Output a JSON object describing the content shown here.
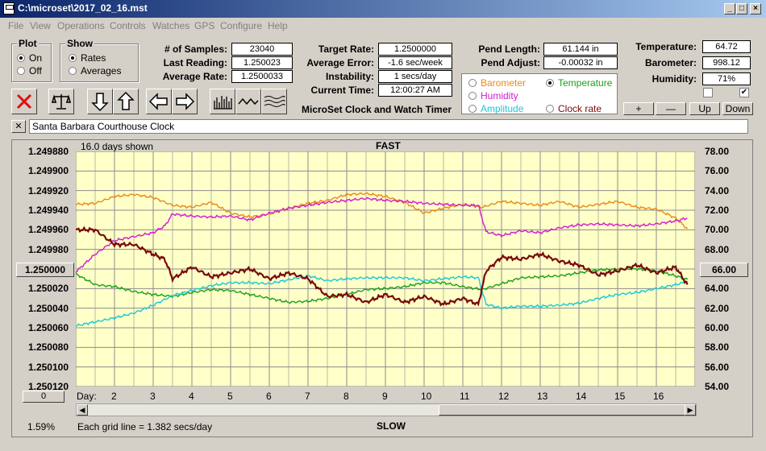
{
  "window": {
    "title": "C:\\microset\\2017_02_16.mst"
  },
  "menu": [
    "File",
    "View",
    "Operations",
    "Controls",
    "Watches",
    "GPS",
    "Configure",
    "Help"
  ],
  "plot_group": {
    "title": "Plot",
    "on": "On",
    "off": "Off",
    "selected": "On"
  },
  "show_group": {
    "title": "Show",
    "rates": "Rates",
    "averages": "Averages",
    "selected": "Rates"
  },
  "stats": {
    "samples_label": "# of Samples:",
    "samples": "23040",
    "last_label": "Last Reading:",
    "last": "1.250023",
    "avg_label": "Average Rate:",
    "avg": "1.2500033",
    "target_label": "Target Rate:",
    "target": "1.2500000",
    "error_label": "Average Error:",
    "error": "-1.6 sec/week",
    "instab_label": "Instability:",
    "instab": "1 secs/day",
    "time_label": "Current Time:",
    "time": "12:00:27 AM",
    "pend_len_label": "Pend Length:",
    "pend_len": "61.144 in",
    "pend_adj_label": "Pend Adjust:",
    "pend_adj": "-0.00032 in",
    "temp_label": "Temperature:",
    "temp": "64.72",
    "baro_label": "Barometer:",
    "baro": "998.12",
    "hum_label": "Humidity:",
    "hum": "71%"
  },
  "app_caption": "MicroSet Clock and Watch Timer",
  "sensor_options": [
    {
      "label": "Barometer",
      "color": "#e88a1a",
      "selected": false
    },
    {
      "label": "Temperature",
      "color": "#1aa01a",
      "selected": true
    },
    {
      "label": "Humidity",
      "color": "#d21ad2",
      "selected": false
    },
    {
      "label": "Amplitude",
      "color": "#1ac8d8",
      "selected": false
    },
    {
      "label": "Clock rate",
      "color": "#7a0a0a",
      "selected": false
    }
  ],
  "buttons": {
    "plus": "+",
    "minus": "—",
    "up": "Up",
    "down": "Down"
  },
  "checkboxes": {
    "left_checked": false,
    "right_checked": true
  },
  "clock_name": "Santa Barbara Courthouse Clock",
  "close_x": "✕",
  "chart_header": {
    "days_shown": "16.0 days shown",
    "fast": "FAST",
    "slow": "SLOW",
    "grid_note": "Each grid line = 1.382 secs/day",
    "percent": "1.59%",
    "day_prefix": "Day:"
  },
  "left_center_value": "1.250000",
  "right_center_value": "66.00",
  "bottom_counter": "0",
  "icons": [
    "reset-x-icon",
    "balance-scale-icon",
    "arrow-down-icon",
    "arrow-up-icon",
    "arrow-left-icon",
    "arrow-right-icon",
    "bar-chart-icon",
    "wave-icon",
    "multi-wave-icon"
  ],
  "chart_data": {
    "type": "line",
    "title": "",
    "x_ticks": [
      2,
      3,
      4,
      5,
      6,
      7,
      8,
      9,
      10,
      11,
      12,
      13,
      14,
      15,
      16
    ],
    "xlim": [
      1,
      17
    ],
    "y_left": {
      "ticks": [
        "1.249880",
        "1.249900",
        "1.249920",
        "1.249940",
        "1.249960",
        "1.249980",
        "",
        "1.250020",
        "1.250040",
        "1.250060",
        "1.250080",
        "1.250100",
        "1.250120"
      ],
      "lim": [
        1.24988,
        1.25012
      ],
      "inverted": true
    },
    "y_right": {
      "ticks": [
        "78.00",
        "76.00",
        "74.00",
        "72.00",
        "70.00",
        "68.00",
        "",
        "64.00",
        "62.00",
        "60.00",
        "58.00",
        "56.00",
        "54.00"
      ],
      "lim": [
        54,
        78
      ]
    },
    "series": [
      {
        "name": "Barometer",
        "color": "#e88a1a",
        "axis": "right",
        "x": [
          1,
          1.5,
          2,
          2.5,
          3,
          3.5,
          4,
          4.5,
          5,
          5.5,
          6,
          6.5,
          7,
          7.5,
          8,
          8.5,
          9,
          9.5,
          10,
          10.5,
          11,
          11.5,
          12,
          12.5,
          13,
          13.5,
          14,
          14.5,
          15,
          15.5,
          16,
          16.5,
          16.8
        ],
        "y": [
          72.6,
          72.7,
          73.4,
          73.6,
          73.3,
          72.5,
          72.3,
          72.8,
          71.7,
          71.3,
          71.6,
          72.2,
          72.7,
          73.0,
          73.6,
          73.7,
          73.4,
          72.8,
          71.7,
          72.2,
          72.6,
          72.3,
          72.9,
          72.7,
          72.5,
          72.9,
          72.3,
          72.6,
          72.9,
          72.3,
          72.1,
          71.2,
          70.1
        ]
      },
      {
        "name": "Humidity",
        "color": "#d21ad2",
        "axis": "right",
        "x": [
          1,
          1.5,
          2,
          2.5,
          3,
          3.3,
          3.5,
          4,
          4.5,
          5,
          5.5,
          6,
          6.5,
          7,
          7.5,
          8,
          8.5,
          9,
          9.5,
          10,
          10.5,
          11,
          11.4,
          11.6,
          12,
          12.5,
          13,
          13.5,
          14,
          14.5,
          15,
          15.5,
          16,
          16.5,
          16.8
        ],
        "y": [
          65.7,
          67.5,
          68.9,
          69.3,
          69.7,
          70.4,
          71.6,
          71.4,
          71.3,
          71.4,
          71.0,
          71.7,
          72.2,
          72.5,
          72.8,
          73.0,
          73.2,
          73.0,
          72.9,
          72.7,
          72.6,
          72.5,
          72.5,
          69.8,
          69.4,
          69.9,
          69.7,
          70.2,
          70.5,
          70.6,
          70.5,
          70.4,
          70.6,
          70.9,
          71.2
        ]
      },
      {
        "name": "Temperature",
        "color": "#1aa01a",
        "axis": "right",
        "x": [
          1,
          1.5,
          2,
          2.5,
          3,
          3.5,
          4,
          4.5,
          5,
          5.5,
          6,
          6.5,
          7,
          7.5,
          8,
          8.5,
          9,
          9.5,
          10,
          10.5,
          11,
          11.5,
          12,
          12.5,
          13,
          13.5,
          14,
          14.5,
          15,
          15.5,
          16,
          16.5,
          16.8
        ],
        "y": [
          65.5,
          64.4,
          64.2,
          63.7,
          63.4,
          63.2,
          63.6,
          63.9,
          63.8,
          63.4,
          63.0,
          62.6,
          62.7,
          63.0,
          63.4,
          63.9,
          64.0,
          64.2,
          64.6,
          64.6,
          64.2,
          63.9,
          64.5,
          65.1,
          65.2,
          65.3,
          65.6,
          65.9,
          66.0,
          66.0,
          65.8,
          65.3,
          64.9
        ]
      },
      {
        "name": "Amplitude",
        "color": "#1ac8d8",
        "axis": "right",
        "x": [
          1,
          1.5,
          2,
          2.5,
          3,
          3.5,
          4,
          4.5,
          5,
          5.5,
          6,
          6.5,
          7,
          7.5,
          8,
          8.5,
          9,
          9.5,
          10,
          10.5,
          11,
          11.4,
          11.6,
          12,
          12.5,
          13,
          13.5,
          14,
          14.5,
          15,
          15.5,
          16,
          16.5,
          16.8
        ],
        "y": [
          60.2,
          60.6,
          61.0,
          61.5,
          62.3,
          63.3,
          63.8,
          64.3,
          64.6,
          64.6,
          64.5,
          64.9,
          65.3,
          64.8,
          65.0,
          65.1,
          65.1,
          65.1,
          64.8,
          65.0,
          65.2,
          65.1,
          62.4,
          62.0,
          62.2,
          62.2,
          62.3,
          62.5,
          63.0,
          63.4,
          63.6,
          64.0,
          64.4,
          64.7
        ]
      },
      {
        "name": "Clock rate",
        "color": "#7a0a0a",
        "axis": "left",
        "x": [
          1,
          1.5,
          2,
          2.5,
          3,
          3.3,
          3.5,
          4,
          4.5,
          5,
          5.5,
          6,
          6.5,
          7,
          7.5,
          8,
          8.5,
          9,
          9.5,
          10,
          10.5,
          11,
          11.4,
          11.6,
          12,
          12.5,
          13,
          13.5,
          14,
          14.5,
          15,
          15.5,
          16,
          16.5,
          16.8
        ],
        "y": [
          1.24996,
          1.24996,
          1.249975,
          1.249975,
          1.249985,
          1.24999,
          1.25001,
          1.249998,
          1.250008,
          1.250004,
          1.25,
          1.25001,
          1.250004,
          1.25001,
          1.250028,
          1.250026,
          1.250034,
          1.250026,
          1.250034,
          1.250028,
          1.250036,
          1.25003,
          1.250036,
          1.250002,
          1.249988,
          1.24999,
          1.249985,
          1.249992,
          1.249996,
          1.250006,
          1.250002,
          1.249996,
          1.250004,
          1.249998,
          1.250016
        ]
      }
    ]
  }
}
